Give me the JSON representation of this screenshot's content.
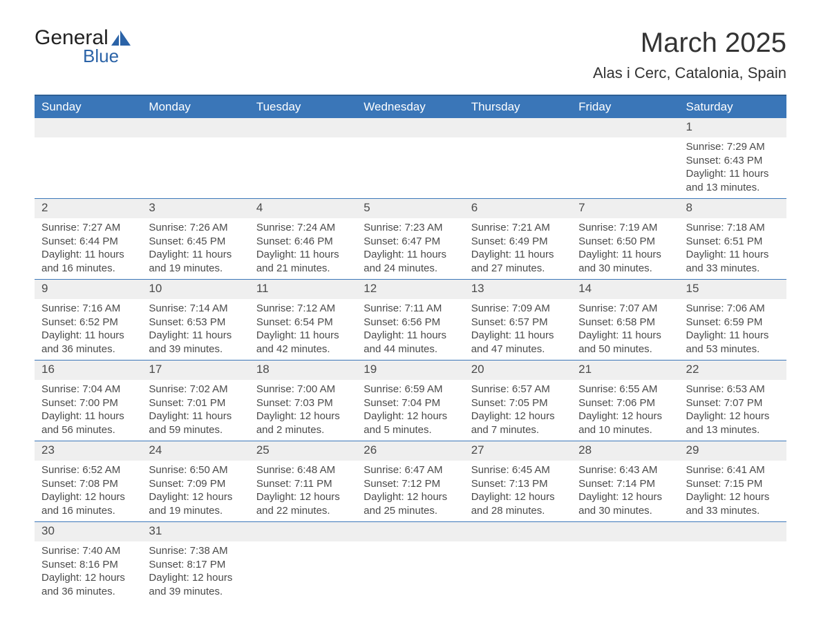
{
  "logo": {
    "word1": "General",
    "word2": "Blue",
    "word1_color": "#222222",
    "word2_color": "#2b63a7",
    "sail_color": "#2b63a7"
  },
  "title": "March 2025",
  "location": "Alas i Cerc, Catalonia, Spain",
  "colors": {
    "header_bg": "#3a76b8",
    "header_text": "#ffffff",
    "row_divider": "#3a76b8",
    "daynum_bg": "#efefef",
    "text": "#4a4a4a",
    "page_bg": "#ffffff"
  },
  "day_headers": [
    "Sunday",
    "Monday",
    "Tuesday",
    "Wednesday",
    "Thursday",
    "Friday",
    "Saturday"
  ],
  "weeks": [
    [
      null,
      null,
      null,
      null,
      null,
      null,
      {
        "n": "1",
        "sunrise": "Sunrise: 7:29 AM",
        "sunset": "Sunset: 6:43 PM",
        "daylight": "Daylight: 11 hours and 13 minutes."
      }
    ],
    [
      {
        "n": "2",
        "sunrise": "Sunrise: 7:27 AM",
        "sunset": "Sunset: 6:44 PM",
        "daylight": "Daylight: 11 hours and 16 minutes."
      },
      {
        "n": "3",
        "sunrise": "Sunrise: 7:26 AM",
        "sunset": "Sunset: 6:45 PM",
        "daylight": "Daylight: 11 hours and 19 minutes."
      },
      {
        "n": "4",
        "sunrise": "Sunrise: 7:24 AM",
        "sunset": "Sunset: 6:46 PM",
        "daylight": "Daylight: 11 hours and 21 minutes."
      },
      {
        "n": "5",
        "sunrise": "Sunrise: 7:23 AM",
        "sunset": "Sunset: 6:47 PM",
        "daylight": "Daylight: 11 hours and 24 minutes."
      },
      {
        "n": "6",
        "sunrise": "Sunrise: 7:21 AM",
        "sunset": "Sunset: 6:49 PM",
        "daylight": "Daylight: 11 hours and 27 minutes."
      },
      {
        "n": "7",
        "sunrise": "Sunrise: 7:19 AM",
        "sunset": "Sunset: 6:50 PM",
        "daylight": "Daylight: 11 hours and 30 minutes."
      },
      {
        "n": "8",
        "sunrise": "Sunrise: 7:18 AM",
        "sunset": "Sunset: 6:51 PM",
        "daylight": "Daylight: 11 hours and 33 minutes."
      }
    ],
    [
      {
        "n": "9",
        "sunrise": "Sunrise: 7:16 AM",
        "sunset": "Sunset: 6:52 PM",
        "daylight": "Daylight: 11 hours and 36 minutes."
      },
      {
        "n": "10",
        "sunrise": "Sunrise: 7:14 AM",
        "sunset": "Sunset: 6:53 PM",
        "daylight": "Daylight: 11 hours and 39 minutes."
      },
      {
        "n": "11",
        "sunrise": "Sunrise: 7:12 AM",
        "sunset": "Sunset: 6:54 PM",
        "daylight": "Daylight: 11 hours and 42 minutes."
      },
      {
        "n": "12",
        "sunrise": "Sunrise: 7:11 AM",
        "sunset": "Sunset: 6:56 PM",
        "daylight": "Daylight: 11 hours and 44 minutes."
      },
      {
        "n": "13",
        "sunrise": "Sunrise: 7:09 AM",
        "sunset": "Sunset: 6:57 PM",
        "daylight": "Daylight: 11 hours and 47 minutes."
      },
      {
        "n": "14",
        "sunrise": "Sunrise: 7:07 AM",
        "sunset": "Sunset: 6:58 PM",
        "daylight": "Daylight: 11 hours and 50 minutes."
      },
      {
        "n": "15",
        "sunrise": "Sunrise: 7:06 AM",
        "sunset": "Sunset: 6:59 PM",
        "daylight": "Daylight: 11 hours and 53 minutes."
      }
    ],
    [
      {
        "n": "16",
        "sunrise": "Sunrise: 7:04 AM",
        "sunset": "Sunset: 7:00 PM",
        "daylight": "Daylight: 11 hours and 56 minutes."
      },
      {
        "n": "17",
        "sunrise": "Sunrise: 7:02 AM",
        "sunset": "Sunset: 7:01 PM",
        "daylight": "Daylight: 11 hours and 59 minutes."
      },
      {
        "n": "18",
        "sunrise": "Sunrise: 7:00 AM",
        "sunset": "Sunset: 7:03 PM",
        "daylight": "Daylight: 12 hours and 2 minutes."
      },
      {
        "n": "19",
        "sunrise": "Sunrise: 6:59 AM",
        "sunset": "Sunset: 7:04 PM",
        "daylight": "Daylight: 12 hours and 5 minutes."
      },
      {
        "n": "20",
        "sunrise": "Sunrise: 6:57 AM",
        "sunset": "Sunset: 7:05 PM",
        "daylight": "Daylight: 12 hours and 7 minutes."
      },
      {
        "n": "21",
        "sunrise": "Sunrise: 6:55 AM",
        "sunset": "Sunset: 7:06 PM",
        "daylight": "Daylight: 12 hours and 10 minutes."
      },
      {
        "n": "22",
        "sunrise": "Sunrise: 6:53 AM",
        "sunset": "Sunset: 7:07 PM",
        "daylight": "Daylight: 12 hours and 13 minutes."
      }
    ],
    [
      {
        "n": "23",
        "sunrise": "Sunrise: 6:52 AM",
        "sunset": "Sunset: 7:08 PM",
        "daylight": "Daylight: 12 hours and 16 minutes."
      },
      {
        "n": "24",
        "sunrise": "Sunrise: 6:50 AM",
        "sunset": "Sunset: 7:09 PM",
        "daylight": "Daylight: 12 hours and 19 minutes."
      },
      {
        "n": "25",
        "sunrise": "Sunrise: 6:48 AM",
        "sunset": "Sunset: 7:11 PM",
        "daylight": "Daylight: 12 hours and 22 minutes."
      },
      {
        "n": "26",
        "sunrise": "Sunrise: 6:47 AM",
        "sunset": "Sunset: 7:12 PM",
        "daylight": "Daylight: 12 hours and 25 minutes."
      },
      {
        "n": "27",
        "sunrise": "Sunrise: 6:45 AM",
        "sunset": "Sunset: 7:13 PM",
        "daylight": "Daylight: 12 hours and 28 minutes."
      },
      {
        "n": "28",
        "sunrise": "Sunrise: 6:43 AM",
        "sunset": "Sunset: 7:14 PM",
        "daylight": "Daylight: 12 hours and 30 minutes."
      },
      {
        "n": "29",
        "sunrise": "Sunrise: 6:41 AM",
        "sunset": "Sunset: 7:15 PM",
        "daylight": "Daylight: 12 hours and 33 minutes."
      }
    ],
    [
      {
        "n": "30",
        "sunrise": "Sunrise: 7:40 AM",
        "sunset": "Sunset: 8:16 PM",
        "daylight": "Daylight: 12 hours and 36 minutes."
      },
      {
        "n": "31",
        "sunrise": "Sunrise: 7:38 AM",
        "sunset": "Sunset: 8:17 PM",
        "daylight": "Daylight: 12 hours and 39 minutes."
      },
      null,
      null,
      null,
      null,
      null
    ]
  ]
}
